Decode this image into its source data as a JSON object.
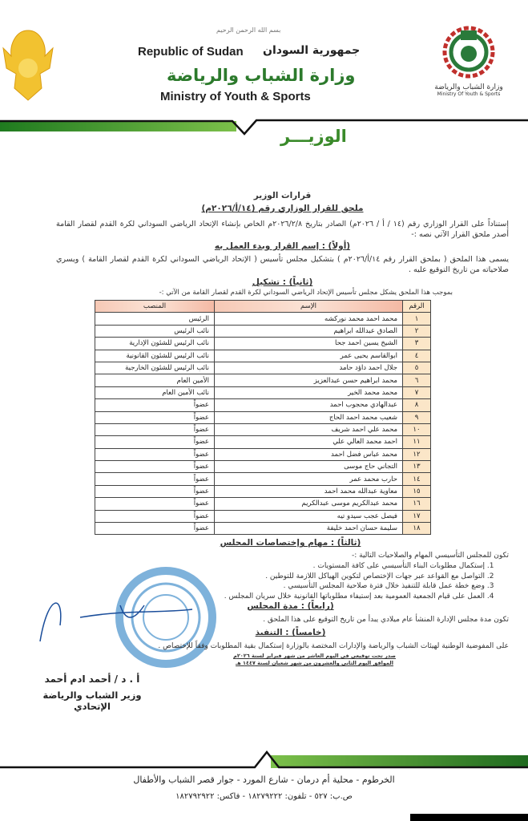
{
  "header": {
    "basmala": "بسم الله الرحمن الرحيم",
    "republic_en": "Republic of Sudan",
    "republic_ar": "جمهورية السودان",
    "ministry_ar": "وزارة الشباب والرياضة",
    "ministry_en": "Ministry of Youth & Sports",
    "logo_caption_ar": "وزارة الشباب والرياضة",
    "logo_caption_en": "Ministry Of Youth & Sports",
    "office": "الوزيـــر",
    "brand_green": "#2c7a2c"
  },
  "doc": {
    "section_title": "قرارات الوزير",
    "decree_title": "ملحق للقرار الوزاري رقم (١٤/أ/٢٠٢٦م)",
    "intro": "إستناداً على القرار الوزاري رقم (١٤ / أ / ٢٠٢٦م) الصادر بتاريخ ٢٠٢٦/٢/٨م الخاص بإنشاء الإتحاد الرياضي السوداني لكرة القدم لقصار القامة أصدر ملحق القرار الآتي نصه :-",
    "first_heading": "(أولاً) : إسم القرار وبدء العمل به",
    "first_text": "يسمى هذا الملحق ( بملحق القرار رقم ١٤/أ/٢٠٢٦م ) بتشكيل مجلس تأسيس ( الإتحاد الرياضي السوداني لكرة القدم لقصار القامة ) ويسري صلاحياته من تاريخ التوقيع عليه .",
    "second_heading": "(ثانياً) : تشكيل",
    "second_text": "بموجب هذا الملحق يشكل مجلس تأسيس الإتحاد الرياضي السوداني لكرة القدم لقصار القامة من الآتي :-",
    "table": {
      "headers": [
        "الرقم",
        "الإسم",
        "المنصب"
      ],
      "rows": [
        [
          "١",
          "محمد احمد محمد نوركشه",
          "الرئيس"
        ],
        [
          "٢",
          "الصادق عبدالله ابراهيم",
          "نائب الرئيس"
        ],
        [
          "٣",
          "الشيخ يسين احمد جحا",
          "نائب الرئيس للشئون الإدارية"
        ],
        [
          "٤",
          "ابوالقاسم يحيى عمر",
          "نائب الرئيس للشئون القانونية"
        ],
        [
          "٥",
          "جلال احمد داؤد حامد",
          "نائب الرئيس للشئون الخارجية"
        ],
        [
          "٦",
          "محمد ابراهيم حسن عبدالعزيز",
          "الأمين العام"
        ],
        [
          "٧",
          "محمد محمد الخير",
          "نائب الأمين العام"
        ],
        [
          "٨",
          "عبدالهادي محجوب احمد",
          "عضواً"
        ],
        [
          "٩",
          "شعيب محمد احمد الحاج",
          "عضواً"
        ],
        [
          "١٠",
          "محمد علي احمد شريف",
          "عضواً"
        ],
        [
          "١١",
          "احمد محمد العالي علي",
          "عضواً"
        ],
        [
          "١٢",
          "محمد عباس فضل احمد",
          "عضواً"
        ],
        [
          "١٣",
          "التجاني حاج موسى",
          "عضواً"
        ],
        [
          "١٤",
          "حارب محمد عمر",
          "عضواً"
        ],
        [
          "١٥",
          "معاوية عبدالله محمد احمد",
          "عضواً"
        ],
        [
          "١٦",
          "محمد عبدالكريم موسى عبدالكريم",
          "عضواً"
        ],
        [
          "١٧",
          "فيصل عجب سيدو تيه",
          "عضواً"
        ],
        [
          "١٨",
          "سليمة حسان احمد خليفة",
          "عضواً"
        ]
      ]
    },
    "third_heading": "(ثالثاً) : مهام وإختصاصات المجلس",
    "third_intro": "تكون للمجلس التأسيسي المهام والصلاحيات التالية :-",
    "third_items": [
      "إستكمال مطلوبات البناء التأسيسي على كافة المستويات .",
      "التواصل مع القواعد عبر جهات الإختصاص لتكوين الهياكل اللازمة للتوطين .",
      "وضع خطة عمل قابلة للتنفيذ خلال فترة صلاحية المجلس التأسيسي .",
      "العمل على قيام الجمعية العمومية بعد إستيفاء مطلوباتها القانونية خلال سريان المجلس ."
    ],
    "fourth_heading": "(رابعاً) : مدة المجلس",
    "fourth_text": "تكون مدة مجلس الإدارة المنشأ عام ميلادي يبدأ من تاريخ التوقيع على هذا الملحق .",
    "fifth_heading": "(خامساً) : التنفيذ",
    "fifth_text": "على المفوضية الوطنية لهيئات الشباب والرياضة والإدارات المختصة بالوزارة إستكمال بقية المطلوبات وفقاً للإختصاص .",
    "issued_1": "صدر تحت توقيعي في اليوم العاشر من شهر فبراير لسنة ٢٠٢٦م",
    "issued_2": "الموافق اليوم الثاني والعشرون من شهر شعبان لسنة ١٤٤٧ هـ",
    "stamp_text": "جمهورية السودان - مكتب الوزير",
    "signer_name": "أ . د / أحمد ادم أحمد",
    "signer_title": "وزير الشباب والرياضة الإتحادي"
  },
  "footer": {
    "address": "الخرطوم - محلية أم درمان - شارع المورد - جوار قصر الشباب والأطفال",
    "contact": "ص.ب: ٥٢٧ - تلفون: ١٨٢٧٩٢٢٢ - فاكس: ١٨٢٧٩٢٩٢٢"
  }
}
